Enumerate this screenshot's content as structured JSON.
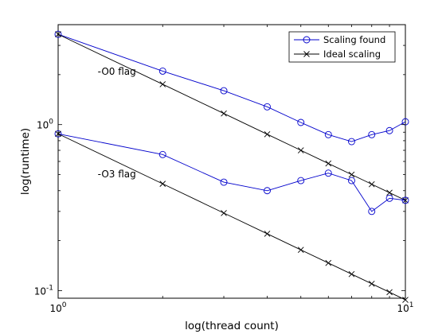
{
  "chart_data": {
    "type": "line",
    "xlabel": "log(thread count)",
    "ylabel": "log(runtime)",
    "xscale": "log",
    "yscale": "log",
    "xlim": [
      1,
      10
    ],
    "ylim": [
      0.09,
      4
    ],
    "x_ticks": [
      {
        "value": 1,
        "base": "10",
        "exp": "0"
      },
      {
        "value": 10,
        "base": "10",
        "exp": "1"
      }
    ],
    "y_ticks": [
      {
        "value": 0.1,
        "base": "10",
        "exp": "-1"
      },
      {
        "value": 1,
        "base": "10",
        "exp": "0"
      }
    ],
    "grid": false,
    "legend_position": "top-right",
    "colors": {
      "scaling_found": "#0000cc",
      "ideal": "#000000"
    },
    "series": [
      {
        "name": "Scaling found",
        "group": "O0",
        "marker": "circle",
        "color": "#0000cc",
        "x": [
          1,
          2,
          3,
          4,
          5,
          6,
          7,
          8,
          9,
          10
        ],
        "y": [
          3.5,
          2.1,
          1.6,
          1.28,
          1.03,
          0.87,
          0.79,
          0.87,
          0.92,
          1.04
        ]
      },
      {
        "name": "Ideal scaling",
        "group": "O0",
        "marker": "x",
        "color": "#000000",
        "x": [
          1,
          2,
          3,
          4,
          5,
          6,
          7,
          8,
          9,
          10
        ],
        "y": [
          3.5,
          1.75,
          1.1667,
          0.875,
          0.7,
          0.5833,
          0.5,
          0.4375,
          0.3889,
          0.35
        ]
      },
      {
        "name": "Scaling found",
        "group": "O3",
        "marker": "circle",
        "color": "#0000cc",
        "x": [
          1,
          2,
          3,
          4,
          5,
          6,
          7,
          8,
          9,
          10
        ],
        "y": [
          0.88,
          0.66,
          0.45,
          0.4,
          0.46,
          0.51,
          0.46,
          0.3,
          0.36,
          0.35
        ]
      },
      {
        "name": "Ideal scaling",
        "group": "O3",
        "marker": "x",
        "color": "#000000",
        "x": [
          1,
          2,
          3,
          4,
          5,
          6,
          7,
          8,
          9,
          10
        ],
        "y": [
          0.88,
          0.44,
          0.2933,
          0.22,
          0.176,
          0.1467,
          0.1257,
          0.11,
          0.0978,
          0.088
        ]
      }
    ],
    "legend": [
      "Scaling found",
      "Ideal scaling"
    ],
    "annotations": [
      {
        "text": "-O0 flag",
        "x": 1.3,
        "y": 2.0
      },
      {
        "text": "-O3 flag",
        "x": 1.3,
        "y": 0.48
      }
    ]
  }
}
